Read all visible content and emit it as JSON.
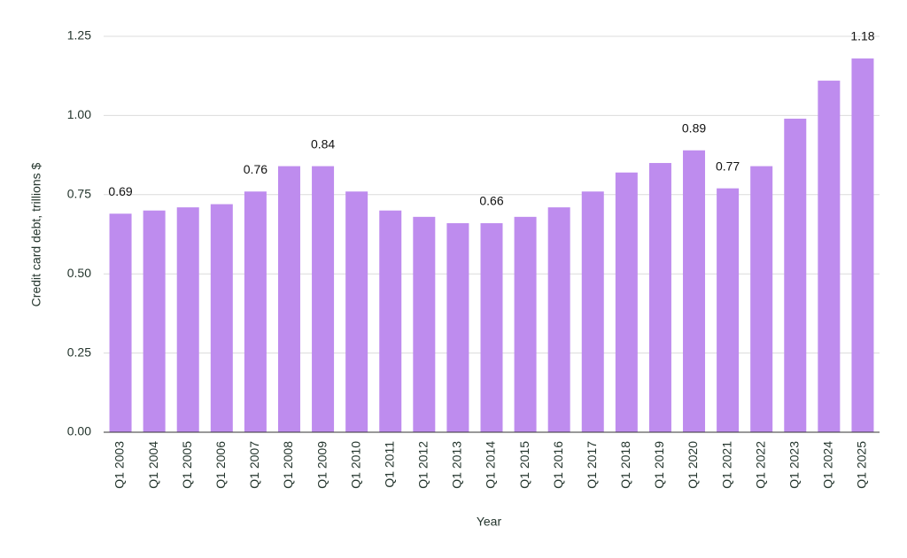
{
  "chart_data": {
    "type": "bar",
    "x_label": "Year",
    "y_label": "Credit card debt, trillions $",
    "categories": [
      "Q1 2003",
      "Q1 2004",
      "Q1 2005",
      "Q1 2006",
      "Q1 2007",
      "Q1 2008",
      "Q1 2009",
      "Q1 2010",
      "Q1 2011",
      "Q1 2012",
      "Q1 2013",
      "Q1 2014",
      "Q1 2015",
      "Q1 2016",
      "Q1 2017",
      "Q1 2018",
      "Q1 2019",
      "Q1 2020",
      "Q1 2021",
      "Q1 2022",
      "Q1 2023",
      "Q1 2024",
      "Q1 2025"
    ],
    "values": [
      0.69,
      0.7,
      0.71,
      0.72,
      0.76,
      0.84,
      0.84,
      0.76,
      0.7,
      0.68,
      0.66,
      0.66,
      0.68,
      0.71,
      0.76,
      0.82,
      0.85,
      0.89,
      0.77,
      0.84,
      0.99,
      1.11,
      1.18
    ],
    "value_labels": [
      "0.69",
      null,
      null,
      null,
      "0.76",
      null,
      "0.84",
      null,
      null,
      null,
      null,
      "0.66",
      null,
      null,
      null,
      null,
      null,
      "0.89",
      "0.77",
      null,
      null,
      null,
      "1.18"
    ],
    "color": "#be8cee",
    "ylim": [
      0,
      1.25
    ],
    "yticks": [
      {
        "value": 0,
        "label": "0.00"
      },
      0.25,
      {
        "value": 0.5,
        "label": "0.50"
      },
      0.75,
      {
        "value": 1,
        "label": "1.00"
      },
      1.25
    ],
    "grid": true
  }
}
